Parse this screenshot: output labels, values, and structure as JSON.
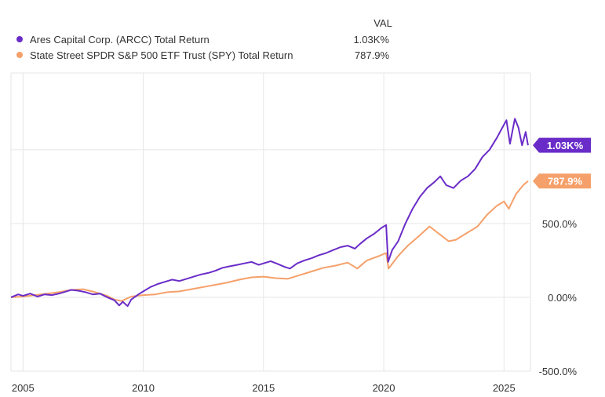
{
  "chart_data": {
    "type": "line",
    "title": "",
    "legend_header": "VAL",
    "legend_position": "top-left",
    "xlabel": "",
    "ylabel": "",
    "xlim": [
      2004.5,
      2026.1
    ],
    "ylim": [
      -500,
      1520
    ],
    "x_ticks": [
      {
        "value": 2005,
        "label": "2005"
      },
      {
        "value": 2010,
        "label": "2010"
      },
      {
        "value": 2015,
        "label": "2015"
      },
      {
        "value": 2020,
        "label": "2020"
      },
      {
        "value": 2025,
        "label": "2025"
      }
    ],
    "y_ticks": [
      {
        "value": -500,
        "label": "-500.0%"
      },
      {
        "value": 0,
        "label": "0.00%"
      },
      {
        "value": 500,
        "label": "500.0%"
      }
    ],
    "grid": true,
    "series": [
      {
        "name": "Ares Capital Corp. (ARCC) Total Return",
        "value_label": "1.03K%",
        "final_value": 1030,
        "color": "#6a2cc8",
        "points": [
          [
            2004.5,
            0
          ],
          [
            2004.8,
            20
          ],
          [
            2005.0,
            10
          ],
          [
            2005.3,
            25
          ],
          [
            2005.6,
            5
          ],
          [
            2005.9,
            20
          ],
          [
            2006.2,
            15
          ],
          [
            2006.5,
            25
          ],
          [
            2006.8,
            40
          ],
          [
            2007.0,
            50
          ],
          [
            2007.3,
            45
          ],
          [
            2007.6,
            35
          ],
          [
            2007.9,
            20
          ],
          [
            2008.2,
            25
          ],
          [
            2008.5,
            0
          ],
          [
            2008.8,
            -20
          ],
          [
            2009.0,
            -55
          ],
          [
            2009.15,
            -30
          ],
          [
            2009.35,
            -60
          ],
          [
            2009.5,
            -15
          ],
          [
            2009.8,
            20
          ],
          [
            2010.0,
            40
          ],
          [
            2010.3,
            70
          ],
          [
            2010.6,
            90
          ],
          [
            2010.9,
            105
          ],
          [
            2011.2,
            120
          ],
          [
            2011.5,
            110
          ],
          [
            2011.8,
            125
          ],
          [
            2012.1,
            140
          ],
          [
            2012.4,
            155
          ],
          [
            2012.7,
            165
          ],
          [
            2013.0,
            180
          ],
          [
            2013.3,
            200
          ],
          [
            2013.6,
            210
          ],
          [
            2013.9,
            220
          ],
          [
            2014.2,
            230
          ],
          [
            2014.5,
            240
          ],
          [
            2014.8,
            220
          ],
          [
            2015.0,
            230
          ],
          [
            2015.3,
            245
          ],
          [
            2015.6,
            225
          ],
          [
            2015.9,
            205
          ],
          [
            2016.1,
            195
          ],
          [
            2016.4,
            230
          ],
          [
            2016.7,
            250
          ],
          [
            2017.0,
            265
          ],
          [
            2017.3,
            285
          ],
          [
            2017.6,
            300
          ],
          [
            2017.9,
            320
          ],
          [
            2018.2,
            340
          ],
          [
            2018.5,
            350
          ],
          [
            2018.8,
            330
          ],
          [
            2019.0,
            360
          ],
          [
            2019.3,
            400
          ],
          [
            2019.6,
            430
          ],
          [
            2019.9,
            470
          ],
          [
            2020.1,
            490
          ],
          [
            2020.18,
            240
          ],
          [
            2020.35,
            320
          ],
          [
            2020.6,
            380
          ],
          [
            2020.9,
            500
          ],
          [
            2021.2,
            600
          ],
          [
            2021.5,
            680
          ],
          [
            2021.8,
            740
          ],
          [
            2022.1,
            780
          ],
          [
            2022.35,
            820
          ],
          [
            2022.6,
            760
          ],
          [
            2022.9,
            740
          ],
          [
            2023.2,
            790
          ],
          [
            2023.5,
            820
          ],
          [
            2023.8,
            870
          ],
          [
            2024.1,
            950
          ],
          [
            2024.4,
            1000
          ],
          [
            2024.7,
            1080
          ],
          [
            2024.9,
            1140
          ],
          [
            2025.1,
            1200
          ],
          [
            2025.25,
            1040
          ],
          [
            2025.45,
            1210
          ],
          [
            2025.6,
            1150
          ],
          [
            2025.75,
            1030
          ],
          [
            2025.9,
            1120
          ],
          [
            2026.0,
            1030
          ]
        ]
      },
      {
        "name": "State Street SPDR S&P 500 ETF Trust (SPY) Total Return",
        "value_label": "787.9%",
        "final_value": 787.9,
        "color": "#f5a06a",
        "points": [
          [
            2004.5,
            0
          ],
          [
            2005.0,
            5
          ],
          [
            2005.5,
            15
          ],
          [
            2006.0,
            25
          ],
          [
            2006.5,
            35
          ],
          [
            2007.0,
            50
          ],
          [
            2007.5,
            55
          ],
          [
            2008.0,
            35
          ],
          [
            2008.5,
            10
          ],
          [
            2008.8,
            -15
          ],
          [
            2009.1,
            -25
          ],
          [
            2009.5,
            5
          ],
          [
            2010.0,
            15
          ],
          [
            2010.5,
            20
          ],
          [
            2011.0,
            35
          ],
          [
            2011.5,
            40
          ],
          [
            2012.0,
            55
          ],
          [
            2012.5,
            70
          ],
          [
            2013.0,
            85
          ],
          [
            2013.5,
            100
          ],
          [
            2014.0,
            120
          ],
          [
            2014.5,
            135
          ],
          [
            2015.0,
            140
          ],
          [
            2015.5,
            130
          ],
          [
            2016.0,
            125
          ],
          [
            2016.5,
            150
          ],
          [
            2017.0,
            175
          ],
          [
            2017.5,
            200
          ],
          [
            2018.0,
            215
          ],
          [
            2018.5,
            235
          ],
          [
            2018.9,
            195
          ],
          [
            2019.3,
            250
          ],
          [
            2019.8,
            280
          ],
          [
            2020.1,
            300
          ],
          [
            2020.2,
            195
          ],
          [
            2020.6,
            280
          ],
          [
            2021.0,
            350
          ],
          [
            2021.5,
            420
          ],
          [
            2021.9,
            480
          ],
          [
            2022.3,
            430
          ],
          [
            2022.7,
            380
          ],
          [
            2023.0,
            390
          ],
          [
            2023.5,
            440
          ],
          [
            2023.9,
            480
          ],
          [
            2024.3,
            560
          ],
          [
            2024.7,
            620
          ],
          [
            2025.0,
            650
          ],
          [
            2025.2,
            600
          ],
          [
            2025.5,
            700
          ],
          [
            2025.8,
            760
          ],
          [
            2026.0,
            787.9
          ]
        ]
      }
    ]
  }
}
